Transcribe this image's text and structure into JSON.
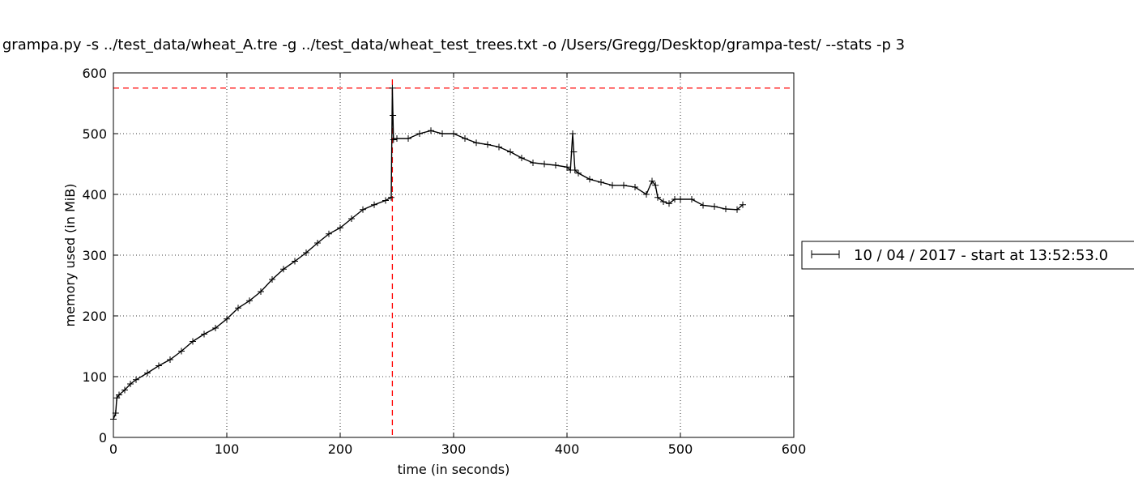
{
  "chart_data": {
    "type": "line",
    "title": "grampa.py -s ../test_data/wheat_A.tre -g ../test_data/wheat_test_trees.txt -o /Users/Gregg/Desktop/grampa-test/ --stats -p 3",
    "xlabel": "time (in seconds)",
    "ylabel": "memory used (in MiB)",
    "xlim": [
      0,
      600
    ],
    "ylim": [
      0,
      600
    ],
    "xticks": [
      0,
      100,
      200,
      300,
      400,
      500,
      600
    ],
    "yticks": [
      0,
      100,
      200,
      300,
      400,
      500,
      600
    ],
    "grid": true,
    "grid_style": "dotted",
    "legend": {
      "position": "right",
      "entries": [
        "10 / 04 / 2017 - start at 13:52:53.0"
      ]
    },
    "reference_lines": [
      {
        "orientation": "horizontal",
        "value": 575,
        "color": "#ff0000",
        "style": "dashed"
      },
      {
        "orientation": "vertical",
        "value": 246,
        "color": "#ff0000",
        "style": "dashed"
      }
    ],
    "series": [
      {
        "name": "10 / 04 / 2017 - start at 13:52:53.0",
        "color": "#000000",
        "marker": "+",
        "x": [
          0,
          2,
          3,
          5,
          10,
          15,
          20,
          30,
          40,
          50,
          60,
          70,
          80,
          90,
          100,
          110,
          120,
          130,
          140,
          150,
          160,
          170,
          180,
          190,
          200,
          210,
          220,
          230,
          240,
          245,
          246,
          246.5,
          247,
          250,
          260,
          270,
          280,
          290,
          300,
          310,
          320,
          330,
          340,
          350,
          360,
          370,
          380,
          390,
          400,
          403,
          405,
          406,
          407,
          410,
          420,
          430,
          440,
          450,
          460,
          470,
          475,
          478,
          480,
          485,
          490,
          495,
          500,
          510,
          520,
          530,
          540,
          550,
          555
        ],
        "y": [
          30,
          40,
          65,
          70,
          78,
          88,
          95,
          106,
          118,
          128,
          142,
          158,
          170,
          180,
          195,
          213,
          225,
          240,
          260,
          277,
          290,
          304,
          320,
          335,
          345,
          360,
          375,
          383,
          390,
          395,
          575,
          530,
          490,
          492,
          492,
          500,
          505,
          500,
          500,
          492,
          485,
          482,
          478,
          470,
          460,
          452,
          450,
          448,
          445,
          440,
          500,
          470,
          440,
          435,
          425,
          420,
          415,
          415,
          412,
          400,
          422,
          415,
          395,
          388,
          385,
          392,
          392,
          392,
          382,
          380,
          376,
          375,
          383
        ]
      }
    ]
  }
}
